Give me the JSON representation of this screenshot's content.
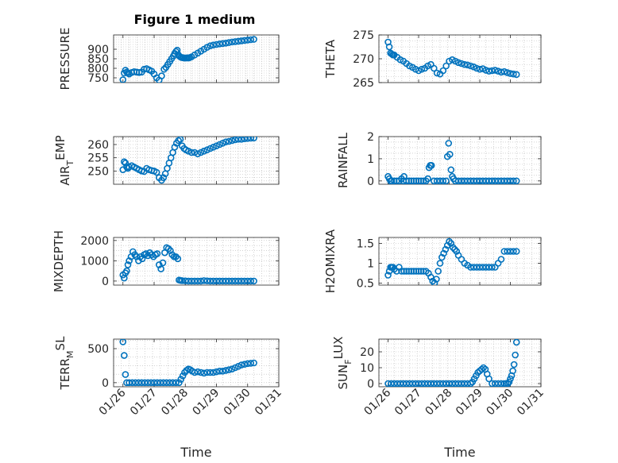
{
  "figure": {
    "title": "Figure 1 medium"
  },
  "colors": {
    "marker": "#0072BD",
    "axis": "#262626",
    "grid": "#b8b8b8"
  },
  "chart_data": [
    {
      "type": "scatter",
      "id": "pressure",
      "ylabel": "PRESSURE",
      "ylabel_sub": "",
      "ylim": [
        725,
        975
      ],
      "yticks": [
        750,
        800,
        850,
        900
      ],
      "ytick_labels": [
        "750",
        "800",
        "850",
        "900"
      ],
      "xlabel": "",
      "show_xticklabels": false,
      "x": [
        0.0,
        0.04,
        0.08,
        0.12,
        0.16,
        0.2,
        0.28,
        0.36,
        0.44,
        0.52,
        0.6,
        0.68,
        0.76,
        0.84,
        0.92,
        1.0,
        1.08,
        1.16,
        1.24,
        1.32,
        1.38,
        1.44,
        1.5,
        1.56,
        1.62,
        1.66,
        1.7,
        1.74,
        1.78,
        1.82,
        1.86,
        1.9,
        1.94,
        1.98,
        2.02,
        2.06,
        2.1,
        2.14,
        2.2,
        2.3,
        2.4,
        2.5,
        2.6,
        2.7,
        2.8,
        2.9,
        3.0,
        3.1,
        3.2,
        3.3,
        3.4,
        3.5,
        3.6,
        3.7,
        3.8,
        3.9,
        4.0,
        4.1,
        4.2
      ],
      "y": [
        740,
        775,
        790,
        780,
        775,
        770,
        778,
        782,
        780,
        778,
        780,
        795,
        798,
        792,
        785,
        770,
        750,
        738,
        760,
        795,
        805,
        820,
        835,
        850,
        865,
        878,
        888,
        895,
        870,
        862,
        858,
        856,
        855,
        854,
        854,
        855,
        854,
        856,
        860,
        870,
        880,
        890,
        900,
        910,
        918,
        922,
        925,
        928,
        930,
        932,
        935,
        938,
        940,
        942,
        944,
        946,
        948,
        950,
        952
      ]
    },
    {
      "type": "scatter",
      "id": "theta",
      "ylabel": "THETA",
      "ylabel_sub": "",
      "ylim": [
        265,
        275
      ],
      "yticks": [
        265,
        270,
        275
      ],
      "ytick_labels": [
        "265",
        "270",
        "275"
      ],
      "xlabel": "",
      "show_xticklabels": false,
      "x": [
        0.0,
        0.04,
        0.08,
        0.12,
        0.16,
        0.2,
        0.3,
        0.4,
        0.5,
        0.6,
        0.7,
        0.8,
        0.9,
        1.0,
        1.1,
        1.2,
        1.3,
        1.4,
        1.5,
        1.6,
        1.7,
        1.8,
        1.9,
        2.0,
        2.1,
        2.2,
        2.3,
        2.4,
        2.5,
        2.6,
        2.7,
        2.8,
        2.9,
        3.0,
        3.1,
        3.2,
        3.3,
        3.4,
        3.5,
        3.6,
        3.7,
        3.8,
        3.9,
        4.0,
        4.1,
        4.2
      ],
      "y": [
        273.5,
        272.5,
        271.2,
        271.0,
        270.8,
        270.8,
        270.3,
        269.8,
        269.5,
        269.0,
        268.5,
        268.2,
        267.8,
        267.5,
        267.8,
        268.0,
        268.5,
        268.8,
        268.0,
        267.0,
        266.8,
        267.5,
        268.5,
        269.5,
        269.8,
        269.5,
        269.2,
        269.0,
        268.8,
        268.7,
        268.5,
        268.3,
        268.0,
        267.8,
        267.9,
        267.6,
        267.4,
        267.5,
        267.6,
        267.4,
        267.2,
        267.3,
        267.1,
        266.9,
        266.8,
        266.7
      ]
    },
    {
      "type": "scatter",
      "id": "air_temp",
      "ylabel": "AIR",
      "ylabel_sub": "T",
      "ylabel_after": "EMP",
      "ylim": [
        245,
        263
      ],
      "yticks": [
        250,
        255,
        260
      ],
      "ytick_labels": [
        "250",
        "255",
        "260"
      ],
      "xlabel": "",
      "show_xticklabels": false,
      "x": [
        0.0,
        0.04,
        0.08,
        0.12,
        0.16,
        0.2,
        0.28,
        0.36,
        0.44,
        0.52,
        0.6,
        0.68,
        0.76,
        0.84,
        0.92,
        1.0,
        1.08,
        1.16,
        1.24,
        1.3,
        1.36,
        1.42,
        1.48,
        1.54,
        1.6,
        1.66,
        1.72,
        1.78,
        1.84,
        1.9,
        1.96,
        2.02,
        2.1,
        2.2,
        2.3,
        2.4,
        2.5,
        2.6,
        2.7,
        2.8,
        2.9,
        3.0,
        3.1,
        3.2,
        3.3,
        3.4,
        3.5,
        3.6,
        3.7,
        3.8,
        3.9,
        4.0,
        4.1,
        4.2
      ],
      "y": [
        250.5,
        253.5,
        253,
        251.5,
        251,
        251.5,
        252,
        251.5,
        251,
        250.5,
        250,
        249.8,
        251,
        250.5,
        250.2,
        250,
        249.5,
        247.5,
        246.5,
        247.5,
        249,
        251,
        253,
        255,
        257,
        259,
        260.5,
        261.5,
        262,
        259.5,
        258.5,
        258,
        257.5,
        257,
        257,
        256.5,
        257,
        257.5,
        258,
        258.5,
        259,
        259.5,
        260,
        260.5,
        261,
        261.2,
        261.5,
        261.8,
        262,
        262,
        262.2,
        262.3,
        262.4,
        262.5
      ]
    },
    {
      "type": "scatter",
      "id": "rainfall",
      "ylabel": "RAINFALL",
      "ylabel_sub": "",
      "ylim": [
        -0.15,
        2
      ],
      "yticks": [
        0,
        1,
        2
      ],
      "ytick_labels": [
        "0",
        "1",
        "2"
      ],
      "xlabel": "",
      "show_xticklabels": false,
      "x": [
        0.0,
        0.04,
        0.08,
        0.12,
        0.2,
        0.28,
        0.36,
        0.44,
        0.5,
        0.52,
        0.6,
        0.68,
        0.76,
        0.84,
        0.92,
        1.0,
        1.08,
        1.16,
        1.24,
        1.3,
        1.34,
        1.38,
        1.42,
        1.5,
        1.6,
        1.7,
        1.8,
        1.9,
        1.94,
        1.98,
        2.02,
        2.06,
        2.1,
        2.14,
        2.2,
        2.3,
        2.4,
        2.5,
        2.6,
        2.7,
        2.8,
        2.9,
        3.0,
        3.1,
        3.2,
        3.3,
        3.4,
        3.5,
        3.6,
        3.7,
        3.8,
        3.9,
        4.0,
        4.1,
        4.2
      ],
      "y": [
        0.2,
        0.1,
        0,
        0,
        0,
        0,
        0,
        0.1,
        0,
        0.2,
        0,
        0,
        0,
        0,
        0,
        0,
        0,
        0,
        0,
        0.1,
        0.6,
        0.7,
        0.7,
        0,
        0,
        0,
        0,
        0,
        1.1,
        1.7,
        1.2,
        0.5,
        0.2,
        0.1,
        0,
        0,
        0,
        0,
        0,
        0,
        0,
        0,
        0,
        0,
        0,
        0,
        0,
        0,
        0,
        0,
        0,
        0,
        0,
        0,
        0
      ]
    },
    {
      "type": "scatter",
      "id": "mixdepth",
      "ylabel": "MIXDEPTH",
      "ylabel_sub": "",
      "ylim": [
        -200,
        2150
      ],
      "yticks": [
        0,
        1000,
        2000
      ],
      "ytick_labels": [
        "0",
        "1000",
        "2000"
      ],
      "xlabel": "",
      "show_xticklabels": false,
      "x": [
        0.0,
        0.04,
        0.08,
        0.12,
        0.16,
        0.2,
        0.26,
        0.32,
        0.38,
        0.44,
        0.5,
        0.56,
        0.62,
        0.68,
        0.74,
        0.8,
        0.86,
        0.92,
        0.98,
        1.04,
        1.1,
        1.16,
        1.22,
        1.28,
        1.34,
        1.4,
        1.46,
        1.52,
        1.58,
        1.64,
        1.7,
        1.76,
        1.8,
        1.85,
        1.9,
        2.0,
        2.1,
        2.2,
        2.3,
        2.4,
        2.5,
        2.6,
        2.7,
        2.8,
        2.9,
        3.0,
        3.1,
        3.2,
        3.3,
        3.4,
        3.5,
        3.6,
        3.7,
        3.8,
        3.9,
        4.0,
        4.1,
        4.2
      ],
      "y": [
        300,
        150,
        400,
        500,
        800,
        1000,
        1200,
        1450,
        1300,
        1200,
        1000,
        1200,
        1100,
        1300,
        1350,
        1250,
        1400,
        1300,
        1200,
        1300,
        1350,
        800,
        600,
        900,
        1400,
        1650,
        1600,
        1500,
        1300,
        1200,
        1200,
        1100,
        50,
        30,
        20,
        10,
        0,
        0,
        0,
        0,
        0,
        20,
        10,
        0,
        0,
        0,
        0,
        0,
        0,
        0,
        0,
        0,
        0,
        0,
        0,
        0,
        0,
        0
      ]
    },
    {
      "type": "scatter",
      "id": "h2omixra",
      "ylabel": "H2OMIXRA",
      "ylabel_sub": "",
      "ylim": [
        0.45,
        1.65
      ],
      "yticks": [
        0.5,
        1,
        1.5
      ],
      "ytick_labels": [
        "0.5",
        "1",
        "1.5"
      ],
      "xlabel": "",
      "show_xticklabels": false,
      "x": [
        0.0,
        0.04,
        0.08,
        0.12,
        0.16,
        0.2,
        0.28,
        0.36,
        0.44,
        0.52,
        0.6,
        0.68,
        0.76,
        0.84,
        0.92,
        1.0,
        1.08,
        1.16,
        1.24,
        1.32,
        1.4,
        1.46,
        1.52,
        1.58,
        1.64,
        1.7,
        1.76,
        1.82,
        1.88,
        1.94,
        2.0,
        2.06,
        2.12,
        2.18,
        2.24,
        2.3,
        2.4,
        2.5,
        2.6,
        2.7,
        2.8,
        2.9,
        3.0,
        3.1,
        3.2,
        3.3,
        3.4,
        3.5,
        3.6,
        3.7,
        3.8,
        3.9,
        4.0,
        4.1,
        4.2
      ],
      "y": [
        0.7,
        0.8,
        0.9,
        0.9,
        0.9,
        0.85,
        0.8,
        0.9,
        0.8,
        0.8,
        0.8,
        0.8,
        0.8,
        0.8,
        0.8,
        0.8,
        0.8,
        0.8,
        0.8,
        0.75,
        0.65,
        0.55,
        0.5,
        0.6,
        0.8,
        1.0,
        1.15,
        1.25,
        1.35,
        1.45,
        1.55,
        1.5,
        1.4,
        1.35,
        1.3,
        1.2,
        1.1,
        1.0,
        0.95,
        0.9,
        0.9,
        0.9,
        0.9,
        0.9,
        0.9,
        0.9,
        0.9,
        0.9,
        1.0,
        1.1,
        1.3,
        1.3,
        1.3,
        1.3,
        1.3
      ]
    },
    {
      "type": "scatter",
      "id": "terr_msl",
      "ylabel": "TERR",
      "ylabel_sub": "M",
      "ylabel_after": "SL",
      "ylim": [
        -60,
        640
      ],
      "yticks": [
        0,
        500
      ],
      "ytick_labels": [
        "0",
        "500"
      ],
      "xlabel": "Time",
      "show_xticklabels": true,
      "x": [
        0.0,
        0.04,
        0.08,
        0.12,
        0.2,
        0.3,
        0.4,
        0.5,
        0.6,
        0.7,
        0.8,
        0.9,
        1.0,
        1.1,
        1.2,
        1.3,
        1.4,
        1.5,
        1.6,
        1.7,
        1.8,
        1.86,
        1.92,
        1.98,
        2.04,
        2.1,
        2.16,
        2.22,
        2.3,
        2.4,
        2.5,
        2.6,
        2.7,
        2.8,
        2.9,
        3.0,
        3.1,
        3.2,
        3.3,
        3.4,
        3.5,
        3.6,
        3.7,
        3.8,
        3.9,
        4.0,
        4.1,
        4.2
      ],
      "y": [
        600,
        400,
        120,
        0,
        0,
        0,
        0,
        0,
        0,
        0,
        0,
        0,
        0,
        0,
        0,
        0,
        0,
        0,
        0,
        0,
        0,
        50,
        100,
        150,
        180,
        200,
        190,
        170,
        150,
        160,
        150,
        140,
        150,
        150,
        150,
        160,
        170,
        170,
        180,
        190,
        200,
        220,
        240,
        260,
        270,
        280,
        285,
        290
      ]
    },
    {
      "type": "scatter",
      "id": "sun_flux",
      "ylabel": "SUN",
      "ylabel_sub": "F",
      "ylabel_after": "LUX",
      "ylim": [
        -2,
        28
      ],
      "yticks": [
        0,
        10,
        20
      ],
      "ytick_labels": [
        "0",
        "10",
        "20"
      ],
      "xlabel": "Time",
      "show_xticklabels": true,
      "x": [
        0.0,
        0.1,
        0.2,
        0.3,
        0.4,
        0.5,
        0.6,
        0.7,
        0.8,
        0.9,
        1.0,
        1.1,
        1.2,
        1.3,
        1.4,
        1.5,
        1.6,
        1.7,
        1.8,
        1.9,
        2.0,
        2.1,
        2.2,
        2.3,
        2.4,
        2.5,
        2.6,
        2.7,
        2.76,
        2.82,
        2.88,
        2.94,
        3.0,
        3.06,
        3.12,
        3.18,
        3.24,
        3.3,
        3.4,
        3.5,
        3.6,
        3.7,
        3.8,
        3.86,
        3.92,
        3.96,
        4.0,
        4.04,
        4.08,
        4.12,
        4.16,
        4.2
      ],
      "y": [
        0,
        0,
        0,
        0,
        0,
        0,
        0,
        0,
        0,
        0,
        0,
        0,
        0,
        0,
        0,
        0,
        0,
        0,
        0,
        0,
        0,
        0,
        0,
        0,
        0,
        0,
        0,
        0,
        1,
        3,
        5,
        7,
        8,
        9,
        10,
        9,
        6,
        3,
        0,
        0,
        0,
        0,
        0,
        0,
        0,
        1,
        3,
        5,
        8,
        12,
        18,
        26
      ]
    }
  ],
  "xaxis": {
    "xlim": [
      -0.3,
      5.0
    ],
    "ticks": [
      0,
      1,
      2,
      3,
      4,
      5
    ],
    "tick_labels": [
      "01/26",
      "01/27",
      "01/28",
      "01/29",
      "01/30",
      "01/31"
    ]
  }
}
